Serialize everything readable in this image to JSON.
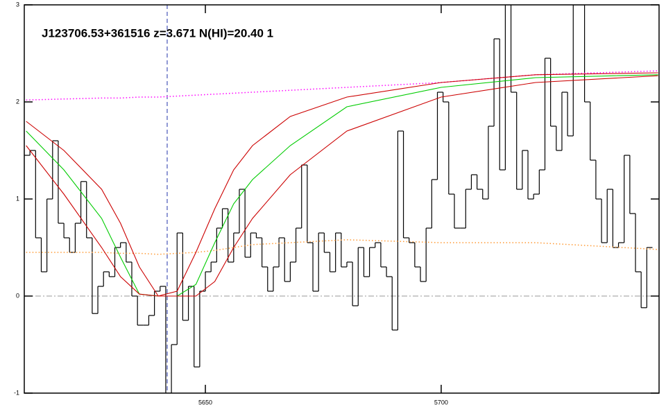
{
  "chart_data": {
    "type": "line",
    "title": "J123706.53+361516 z=3.671 N(HI)=20.40 1",
    "xlim": [
      5611.6,
      5746.2
    ],
    "ylim": [
      -1,
      3
    ],
    "xticks": [
      5650,
      5700
    ],
    "yticks": [
      -1,
      0,
      1,
      2,
      3
    ],
    "zero_line": {
      "value": 0,
      "color": "#999999"
    },
    "marker_x": {
      "value": 5641.9,
      "color": "#2233aa"
    },
    "series": [
      {
        "color": "#000000",
        "style": "step",
        "x": [
          5612.2,
          5613.4,
          5614.6,
          5615.8,
          5617.0,
          5618.2,
          5619.4,
          5620.6,
          5621.8,
          5623.0,
          5624.2,
          5625.4,
          5626.6,
          5627.8,
          5629.0,
          5630.2,
          5631.4,
          5632.6,
          5633.8,
          5635.0,
          5636.2,
          5637.4,
          5638.6,
          5639.8,
          5641.0,
          5642.2,
          5643.4,
          5644.6,
          5645.8,
          5647.0,
          5648.2,
          5649.4,
          5650.6,
          5651.8,
          5653.0,
          5654.2,
          5655.4,
          5656.6,
          5657.8,
          5659.0,
          5660.2,
          5661.4,
          5662.6,
          5663.8,
          5665.0,
          5666.2,
          5667.4,
          5668.6,
          5669.8,
          5671.0,
          5672.2,
          5673.4,
          5674.6,
          5675.8,
          5677.0,
          5678.2,
          5679.4,
          5680.6,
          5681.8,
          5683.0,
          5684.2,
          5685.4,
          5686.6,
          5687.8,
          5689.0,
          5690.2,
          5691.4,
          5692.6,
          5693.8,
          5695.0,
          5696.2,
          5697.4,
          5698.6,
          5699.8,
          5701.0,
          5702.2,
          5703.4,
          5704.6,
          5705.8,
          5707.0,
          5708.2,
          5709.4,
          5710.6,
          5711.8,
          5713.0,
          5714.2,
          5715.4,
          5716.6,
          5717.8,
          5719.0,
          5720.2,
          5721.4,
          5722.6,
          5723.8,
          5725.0,
          5726.2,
          5727.4,
          5728.6,
          5729.8,
          5731.0,
          5732.2,
          5733.4,
          5734.6,
          5735.8,
          5737.0,
          5738.2,
          5739.4,
          5740.6,
          5741.8,
          5743.0,
          5744.2
        ],
        "values": [
          1.45,
          1.5,
          0.6,
          0.25,
          1.0,
          1.6,
          0.75,
          0.6,
          0.45,
          0.75,
          1.18,
          0.6,
          -0.18,
          0.1,
          0.25,
          0.2,
          0.5,
          0.55,
          0.35,
          0.0,
          -0.3,
          -0.3,
          -0.2,
          0.05,
          0.1,
          -1.0,
          -0.5,
          0.65,
          -0.25,
          0.1,
          -0.73,
          0.05,
          0.25,
          0.35,
          0.7,
          0.9,
          0.35,
          0.65,
          1.1,
          0.4,
          0.65,
          0.6,
          0.3,
          0.05,
          0.3,
          0.6,
          0.15,
          0.35,
          0.7,
          1.35,
          0.55,
          0.05,
          0.65,
          0.45,
          0.25,
          0.65,
          0.3,
          0.35,
          -0.1,
          0.5,
          0.2,
          0.5,
          0.55,
          0.3,
          0.2,
          -0.35,
          1.7,
          0.6,
          0.55,
          0.3,
          0.15,
          0.7,
          1.2,
          2.1,
          2.0,
          1.05,
          0.7,
          0.7,
          1.1,
          1.25,
          1.1,
          1.0,
          1.75,
          2.65,
          1.3,
          3.0,
          2.1,
          1.1,
          1.5,
          1.0,
          1.05,
          1.3,
          2.45,
          1.75,
          1.5,
          2.1,
          1.65,
          3.0,
          3.0,
          2.0,
          1.4,
          1.0,
          0.55,
          1.1,
          0.5,
          0.55,
          1.45,
          0.85,
          0.25,
          -0.12,
          0.5
        ]
      },
      {
        "color": "#ff00ff",
        "style": "dotted",
        "x": [
          5612,
          5620,
          5628,
          5632,
          5636,
          5640,
          5644,
          5648,
          5652,
          5656,
          5660,
          5668,
          5680,
          5700,
          5720,
          5746
        ],
        "values": [
          2.02,
          2.03,
          2.04,
          2.04,
          2.05,
          2.05,
          2.06,
          2.07,
          2.08,
          2.09,
          2.1,
          2.12,
          2.15,
          2.2,
          2.28,
          2.32
        ]
      },
      {
        "color": "#ff9933",
        "style": "dotted",
        "x": [
          5612,
          5620,
          5628,
          5632,
          5636,
          5640,
          5644,
          5648,
          5652,
          5656,
          5660,
          5668,
          5680,
          5700,
          5720,
          5746
        ],
        "values": [
          0.45,
          0.45,
          0.45,
          0.44,
          0.44,
          0.43,
          0.44,
          0.45,
          0.47,
          0.5,
          0.53,
          0.55,
          0.58,
          0.55,
          0.55,
          0.48
        ]
      },
      {
        "color": "#cc0000",
        "style": "solid",
        "x": [
          5612,
          5620,
          5628,
          5632,
          5636,
          5640,
          5644,
          5648,
          5652,
          5656,
          5660,
          5668,
          5680,
          5700,
          5720,
          5746
        ],
        "values": [
          1.8,
          1.5,
          1.1,
          0.75,
          0.3,
          0,
          0.05,
          0.45,
          0.9,
          1.3,
          1.55,
          1.85,
          2.05,
          2.2,
          2.28,
          2.3
        ]
      },
      {
        "color": "#00cc00",
        "style": "solid",
        "x": [
          5612,
          5620,
          5628,
          5632,
          5636,
          5640,
          5644,
          5648,
          5652,
          5656,
          5660,
          5668,
          5680,
          5700,
          5720,
          5746
        ],
        "values": [
          1.7,
          1.3,
          0.8,
          0.4,
          0.02,
          0,
          0,
          0.12,
          0.55,
          0.95,
          1.2,
          1.55,
          1.95,
          2.15,
          2.25,
          2.28
        ]
      },
      {
        "color": "#cc0000",
        "style": "solid",
        "x": [
          5612,
          5620,
          5628,
          5632,
          5636,
          5640,
          5644,
          5648,
          5652,
          5656,
          5660,
          5668,
          5680,
          5700,
          5720,
          5746
        ],
        "values": [
          1.55,
          1.05,
          0.5,
          0.2,
          0.02,
          0,
          0,
          0,
          0.15,
          0.5,
          0.8,
          1.25,
          1.7,
          2.05,
          2.2,
          2.27
        ]
      }
    ]
  }
}
